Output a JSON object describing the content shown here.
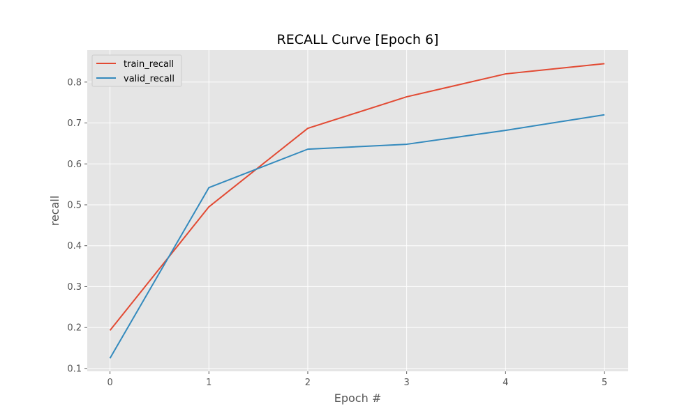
{
  "chart_data": {
    "type": "line",
    "title": "RECALL Curve [Epoch 6]",
    "xlabel": "Epoch #",
    "ylabel": "recall",
    "x": [
      0,
      1,
      2,
      3,
      4,
      5
    ],
    "xlim": [
      -0.23,
      5.24
    ],
    "ylim": [
      0.093,
      0.878
    ],
    "xticks": [
      "0",
      "1",
      "2",
      "3",
      "4",
      "5"
    ],
    "yticks": [
      "0.1",
      "0.2",
      "0.3",
      "0.4",
      "0.5",
      "0.6",
      "0.7",
      "0.8"
    ],
    "grid": true,
    "legend_position": "upper-left",
    "background": "#e5e5e5",
    "series": [
      {
        "name": "train_recall",
        "color": "#e24a33",
        "values": [
          0.193,
          0.495,
          0.687,
          0.764,
          0.82,
          0.845
        ]
      },
      {
        "name": "valid_recall",
        "color": "#348abd",
        "values": [
          0.125,
          0.542,
          0.636,
          0.648,
          0.682,
          0.72
        ]
      }
    ]
  }
}
